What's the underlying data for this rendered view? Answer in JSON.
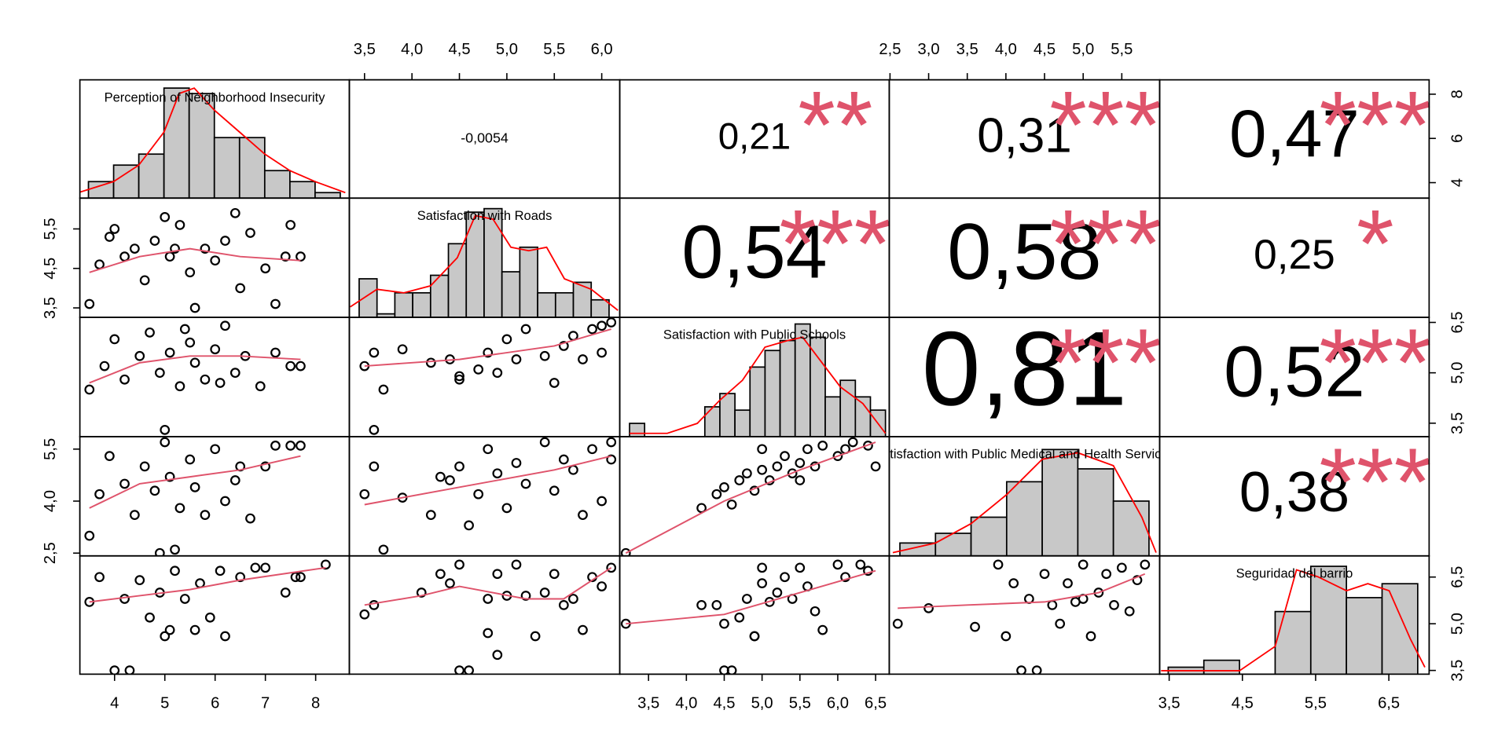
{
  "chart_data": {
    "type": "pairs",
    "variables": [
      {
        "name": "Perception of Neighborhood Insecurity",
        "xlim": [
          3.31,
          8.67
        ],
        "ylim": [
          3.3,
          8.65
        ],
        "xticks": [
          4,
          5,
          6,
          7,
          8
        ],
        "yticks": [
          4,
          6,
          8
        ],
        "hist": {
          "bins": [
            3.5,
            4,
            4.5,
            5,
            5.5,
            6,
            6.5,
            7,
            7.5,
            8,
            8.5
          ],
          "counts": [
            3,
            6,
            8,
            20,
            19,
            11,
            11,
            5,
            3,
            1
          ],
          "xlim": [
            3.33,
            8.68
          ],
          "ylim": [
            0,
            21.5
          ],
          "density_x": [
            3.3,
            4,
            4.5,
            5,
            5.3,
            5.6,
            6,
            6.5,
            7,
            7.5,
            8,
            8.6
          ],
          "density_y": [
            1,
            3,
            6,
            12,
            19,
            20,
            16,
            12,
            8,
            5,
            3,
            1
          ]
        }
      },
      {
        "name": "Satisfaction with Roads",
        "xlim": [
          3.34,
          6.19
        ],
        "ylim": [
          3.26,
          6.28
        ],
        "xticks": [
          {
            "value": 3.5,
            "label": "3,5"
          },
          {
            "value": 4.0,
            "label": "4,0"
          },
          {
            "value": 4.5,
            "label": "4,5"
          },
          {
            "value": 5.0,
            "label": "5,0"
          },
          {
            "value": 5.5,
            "label": "5,5"
          },
          {
            "value": 6.0,
            "label": "6,0"
          }
        ],
        "yticks": [
          {
            "value": 3.5,
            "label": "3,5"
          },
          {
            "value": 4.5,
            "label": "4,5"
          },
          {
            "value": 5.5,
            "label": "5,5"
          }
        ],
        "hist": {
          "bins": [
            3.4,
            3.6,
            3.8,
            4.0,
            4.2,
            4.4,
            4.6,
            4.8,
            5.0,
            5.2,
            5.4,
            5.6,
            5.8,
            6.0,
            6.2
          ],
          "counts": [
            11,
            1,
            7,
            7,
            12,
            21,
            30,
            31,
            13,
            20,
            7,
            7,
            10,
            5
          ],
          "xlim": [
            3.29,
            6.32
          ],
          "ylim": [
            0,
            34
          ],
          "density_x": [
            3.3,
            3.6,
            3.9,
            4.2,
            4.5,
            4.7,
            4.9,
            5.1,
            5.3,
            5.5,
            5.7,
            6.0,
            6.3
          ],
          "density_y": [
            3,
            8,
            7,
            9,
            17,
            29,
            28,
            20,
            19,
            20,
            11,
            8,
            2
          ]
        }
      },
      {
        "name": "Satisfaction with Public Schools",
        "xlim": [
          3.12,
          6.68
        ],
        "ylim": [
          3.1,
          6.65
        ],
        "xticks": [
          {
            "value": 3.5,
            "label": "3,5"
          },
          {
            "value": 4.0,
            "label": "4,0"
          },
          {
            "value": 4.5,
            "label": "4,5"
          },
          {
            "value": 5.0,
            "label": "5,0"
          },
          {
            "value": 5.5,
            "label": "5,5"
          },
          {
            "value": 6.0,
            "label": "6,0"
          },
          {
            "value": 6.5,
            "label": "6,5"
          }
        ],
        "yticks": [
          {
            "value": 3.5,
            "label": "3,5"
          },
          {
            "value": 5.0,
            "label": "5,0"
          },
          {
            "value": 6.5,
            "label": "6,5"
          }
        ],
        "hist": {
          "bins": [
            3.2,
            3.4,
            3.6,
            3.8,
            4.0,
            4.2,
            4.4,
            4.6,
            4.8,
            5.0,
            5.2,
            5.4,
            5.6,
            5.8,
            6.0,
            6.2,
            6.4,
            6.6
          ],
          "counts": [
            4,
            0,
            0,
            0,
            0,
            9,
            13,
            8,
            21,
            26,
            29,
            34,
            30,
            12,
            17,
            12,
            8
          ],
          "xlim": [
            3.07,
            6.65
          ],
          "ylim": [
            0,
            36
          ],
          "density_x": [
            3.2,
            3.7,
            4.1,
            4.4,
            4.7,
            5.0,
            5.3,
            5.5,
            5.7,
            6.0,
            6.3,
            6.6
          ],
          "density_y": [
            1,
            1,
            4,
            11,
            17,
            27,
            29,
            30,
            24,
            15,
            10,
            1
          ]
        }
      },
      {
        "name": "Satisfaction with Public Medical and Health Services",
        "xlim": [
          2.49,
          5.99
        ],
        "ylim": [
          2.42,
          5.86
        ],
        "xticks": [
          {
            "value": 2.5,
            "label": "2,5"
          },
          {
            "value": 3.0,
            "label": "3,0"
          },
          {
            "value": 3.5,
            "label": "3,5"
          },
          {
            "value": 4.0,
            "label": "4,0"
          },
          {
            "value": 4.5,
            "label": "4,5"
          },
          {
            "value": 5.0,
            "label": "5,0"
          },
          {
            "value": 5.5,
            "label": "5,5"
          }
        ],
        "yticks": [
          {
            "value": 2.5,
            "label": "2,5"
          },
          {
            "value": 4.0,
            "label": "4,0"
          },
          {
            "value": 5.5,
            "label": "5,5"
          }
        ],
        "hist": {
          "bins": [
            2.5,
            3.0,
            3.5,
            4.0,
            4.5,
            5.0,
            5.5,
            6.0
          ],
          "counts": [
            4,
            7,
            12,
            23,
            33,
            27,
            17
          ],
          "xlim": [
            2.35,
            6.15
          ],
          "ylim": [
            0,
            37
          ],
          "density_x": [
            2.4,
            3.0,
            3.5,
            4.0,
            4.5,
            5.0,
            5.5,
            5.9,
            6.1
          ],
          "density_y": [
            1,
            4,
            10,
            19,
            30,
            32,
            28,
            12,
            1
          ]
        }
      },
      {
        "name": "Seguridad del barrio",
        "xlim": [
          3.37,
          7.05
        ],
        "ylim": [
          3.38,
          7.18
        ],
        "xticks": [
          {
            "value": 3.5,
            "label": "3,5"
          },
          {
            "value": 4.5,
            "label": "4,5"
          },
          {
            "value": 5.5,
            "label": "5,5"
          },
          {
            "value": 6.5,
            "label": "6,5"
          }
        ],
        "yticks": [
          {
            "value": 3.5,
            "label": "3,5"
          },
          {
            "value": 5.0,
            "label": "5,0"
          },
          {
            "value": 6.5,
            "label": "6,5"
          }
        ],
        "hist": {
          "bins": [
            3.5,
            4.0,
            4.5,
            5.0,
            5.5,
            6.0,
            6.5,
            7.0
          ],
          "counts": [
            2,
            4,
            0,
            18,
            31,
            22,
            26
          ],
          "xlim": [
            3.38,
            7.16
          ],
          "ylim": [
            0,
            34
          ],
          "density_x": [
            3.4,
            4.0,
            4.5,
            5.0,
            5.3,
            5.6,
            6.0,
            6.3,
            6.6,
            6.9,
            7.1
          ],
          "density_y": [
            1,
            1,
            1,
            8,
            30,
            28,
            24,
            26,
            24,
            10,
            2
          ]
        }
      }
    ],
    "correlations": {
      "values": [
        -0.0054,
        0.21,
        0.31,
        0.47,
        0.54,
        0.58,
        0.25,
        0.81,
        0.52,
        0.38
      ],
      "value_labels": [
        "-0,0054",
        "0,21",
        "0,31",
        "0,47",
        "0,54",
        "0,58",
        "0,25",
        "0,81",
        "0,52",
        "0,38"
      ],
      "stars": [
        null,
        "**",
        "***",
        "***",
        "***",
        "***",
        "*",
        "***",
        "***",
        "***"
      ]
    },
    "scatter": [
      {
        "x": [
          3.5,
          3.7,
          3.9,
          4.0,
          4.2,
          4.4,
          4.6,
          4.8,
          5.0,
          5.1,
          5.3,
          5.5,
          5.6,
          5.8,
          6.0,
          6.2,
          6.5,
          6.7,
          7.0,
          7.2,
          7.5,
          7.7,
          7.4,
          5.2,
          6.4
        ],
        "y": [
          3.6,
          4.6,
          5.3,
          5.5,
          4.8,
          5.0,
          4.2,
          5.2,
          5.8,
          4.8,
          5.6,
          4.4,
          3.5,
          5.0,
          4.7,
          5.2,
          4.0,
          5.4,
          4.5,
          3.6,
          5.6,
          4.8,
          4.8,
          5.0,
          5.9
        ],
        "smooth_x": [
          3.5,
          4.5,
          5.5,
          6.5,
          7.7
        ],
        "smooth_y": [
          4.4,
          4.8,
          5.0,
          4.8,
          4.7
        ]
      },
      {
        "x": [
          3.5,
          3.8,
          4.0,
          4.2,
          4.5,
          4.7,
          4.9,
          5.0,
          5.1,
          5.3,
          5.5,
          5.6,
          5.8,
          6.0,
          6.2,
          6.4,
          6.6,
          6.9,
          7.2,
          7.5,
          7.7,
          5.4,
          6.1
        ],
        "y": [
          4.5,
          5.2,
          6.0,
          4.8,
          5.5,
          6.2,
          5.0,
          3.3,
          5.6,
          4.6,
          5.9,
          5.3,
          4.8,
          5.7,
          6.4,
          5.0,
          5.5,
          4.6,
          5.6,
          5.2,
          5.2,
          6.3,
          4.7
        ],
        "smooth_x": [
          3.5,
          4.5,
          5.5,
          6.5,
          7.7
        ],
        "smooth_y": [
          4.7,
          5.3,
          5.5,
          5.5,
          5.4
        ]
      },
      {
        "x": [
          3.5,
          3.6,
          3.7,
          3.9,
          4.2,
          4.4,
          4.5,
          4.7,
          4.8,
          4.9,
          5.0,
          5.1,
          5.2,
          5.4,
          5.5,
          5.6,
          5.7,
          5.8,
          5.9,
          6.0,
          6.1,
          3.6,
          4.5,
          6.0
        ],
        "y": [
          5.2,
          5.6,
          4.5,
          5.7,
          5.3,
          5.4,
          4.8,
          5.1,
          5.6,
          5.0,
          6.0,
          5.4,
          6.3,
          5.5,
          4.7,
          5.8,
          6.1,
          5.4,
          6.3,
          5.6,
          6.5,
          3.3,
          4.9,
          6.4
        ],
        "smooth_x": [
          3.5,
          4.5,
          5.5,
          6.1
        ],
        "smooth_y": [
          5.2,
          5.4,
          5.8,
          6.3
        ]
      },
      {
        "x": [
          3.5,
          3.7,
          3.9,
          4.2,
          4.4,
          4.6,
          4.8,
          5.0,
          5.1,
          5.3,
          5.5,
          5.6,
          5.8,
          6.0,
          6.2,
          6.5,
          6.7,
          7.0,
          7.2,
          7.5,
          7.7,
          5.2,
          4.9,
          6.4
        ],
        "y": [
          3.0,
          4.2,
          5.3,
          4.5,
          3.6,
          5.0,
          4.3,
          5.7,
          4.7,
          3.8,
          5.2,
          4.4,
          3.6,
          5.5,
          4.0,
          5.0,
          3.5,
          5.0,
          5.6,
          5.6,
          5.6,
          2.6,
          2.5,
          4.6
        ],
        "smooth_x": [
          3.5,
          4.5,
          5.5,
          6.5,
          7.7
        ],
        "smooth_y": [
          3.8,
          4.5,
          4.7,
          4.9,
          5.3
        ]
      },
      {
        "x": [
          3.5,
          3.6,
          3.7,
          3.9,
          4.2,
          4.4,
          4.5,
          4.6,
          4.7,
          4.8,
          4.9,
          5.0,
          5.1,
          5.2,
          5.4,
          5.5,
          5.6,
          5.7,
          5.8,
          5.9,
          6.0,
          6.1,
          6.1,
          4.3
        ],
        "y": [
          4.2,
          5.0,
          2.6,
          4.1,
          3.6,
          4.6,
          5.0,
          3.3,
          4.2,
          5.5,
          4.8,
          3.8,
          5.1,
          4.5,
          5.7,
          4.3,
          5.2,
          4.9,
          3.6,
          5.5,
          4.0,
          5.7,
          5.2,
          4.7
        ],
        "smooth_x": [
          3.5,
          4.5,
          5.5,
          6.1
        ],
        "smooth_y": [
          3.9,
          4.4,
          4.9,
          5.3
        ]
      },
      {
        "x": [
          3.2,
          4.2,
          4.4,
          4.5,
          4.6,
          4.7,
          4.8,
          4.9,
          5.0,
          5.0,
          5.1,
          5.2,
          5.3,
          5.4,
          5.5,
          5.6,
          5.7,
          5.8,
          6.0,
          6.1,
          6.2,
          6.4,
          6.5,
          5.5
        ],
        "y": [
          2.5,
          3.8,
          4.2,
          4.4,
          3.9,
          4.6,
          4.8,
          4.3,
          4.9,
          5.5,
          4.6,
          5.0,
          5.3,
          4.8,
          5.1,
          5.5,
          5.0,
          5.6,
          5.3,
          5.5,
          5.7,
          5.6,
          5.0,
          4.6
        ],
        "smooth_x": [
          3.2,
          4.5,
          5.5,
          6.5
        ],
        "smooth_y": [
          2.5,
          4.0,
          4.9,
          5.7
        ]
      },
      {
        "x": [
          3.5,
          3.7,
          4.0,
          4.3,
          4.2,
          4.5,
          4.7,
          4.9,
          5.0,
          5.1,
          5.2,
          5.4,
          5.6,
          5.7,
          5.9,
          6.1,
          6.2,
          6.5,
          6.8,
          7.0,
          7.4,
          7.6,
          7.7,
          8.2
        ],
        "y": [
          5.7,
          6.5,
          3.5,
          3.5,
          5.8,
          6.4,
          5.2,
          6.0,
          4.6,
          4.8,
          6.7,
          5.8,
          4.8,
          6.3,
          5.2,
          6.7,
          4.6,
          6.5,
          6.8,
          6.8,
          6.0,
          6.5,
          6.5,
          6.9
        ],
        "smooth_x": [
          3.5,
          4.5,
          5.5,
          6.5,
          8.2
        ],
        "smooth_y": [
          5.7,
          5.9,
          6.1,
          6.4,
          6.8
        ]
      },
      {
        "x": [
          3.5,
          3.6,
          4.1,
          4.3,
          4.4,
          4.5,
          4.6,
          4.8,
          4.8,
          4.9,
          5.0,
          5.1,
          5.2,
          5.3,
          5.4,
          5.5,
          5.6,
          5.7,
          5.8,
          5.9,
          6.0,
          6.1,
          4.5,
          4.9
        ],
        "y": [
          5.3,
          5.6,
          6.0,
          6.6,
          6.3,
          6.9,
          3.5,
          5.8,
          4.7,
          6.6,
          5.9,
          6.9,
          5.9,
          4.6,
          6.0,
          6.6,
          5.6,
          5.8,
          4.8,
          6.5,
          6.2,
          6.8,
          3.5,
          4.0
        ],
        "smooth_x": [
          3.5,
          4.1,
          4.5,
          5.2,
          5.6,
          6.1
        ],
        "smooth_y": [
          5.6,
          5.9,
          6.2,
          5.8,
          5.8,
          6.8
        ]
      },
      {
        "x": [
          3.2,
          4.2,
          4.4,
          4.5,
          4.6,
          4.5,
          4.7,
          4.8,
          4.9,
          5.0,
          5.0,
          5.1,
          5.2,
          5.3,
          5.4,
          5.5,
          5.6,
          5.7,
          5.8,
          6.0,
          6.1,
          6.3,
          6.4,
          4.9
        ],
        "y": [
          5.0,
          5.6,
          5.6,
          3.5,
          3.5,
          5.0,
          5.2,
          5.8,
          4.6,
          6.3,
          6.8,
          5.7,
          6.0,
          6.5,
          5.8,
          6.8,
          6.2,
          5.4,
          4.8,
          6.9,
          6.5,
          6.9,
          6.7,
          4.6
        ],
        "smooth_x": [
          3.2,
          4.5,
          5.5,
          6.5
        ],
        "smooth_y": [
          5.0,
          5.3,
          6.0,
          6.7
        ]
      },
      {
        "x": [
          2.6,
          3.0,
          3.6,
          3.9,
          4.0,
          4.1,
          4.2,
          4.3,
          4.4,
          4.5,
          4.6,
          4.7,
          4.8,
          4.9,
          5.0,
          5.1,
          5.2,
          5.3,
          5.4,
          5.5,
          5.6,
          5.7,
          5.8,
          5.0
        ],
        "y": [
          5.0,
          5.5,
          4.9,
          6.9,
          4.6,
          6.3,
          3.5,
          5.8,
          3.5,
          6.6,
          5.6,
          5.0,
          6.3,
          5.7,
          6.9,
          4.6,
          6.0,
          6.6,
          5.6,
          6.8,
          5.4,
          6.4,
          6.9,
          5.8
        ],
        "smooth_x": [
          2.6,
          3.5,
          4.5,
          5.2,
          5.8
        ],
        "smooth_y": [
          5.5,
          5.6,
          5.7,
          6.0,
          6.6
        ]
      }
    ]
  }
}
